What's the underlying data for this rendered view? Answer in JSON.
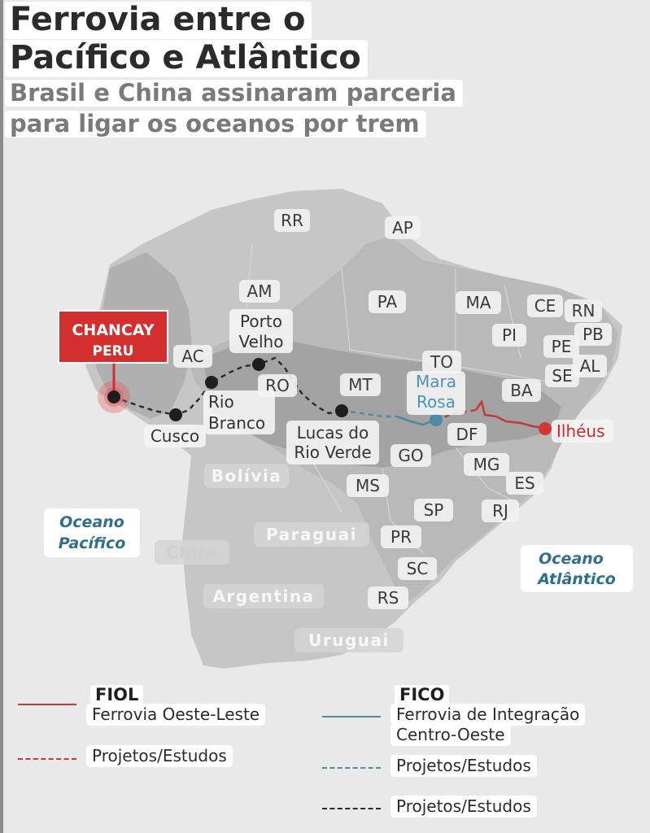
{
  "title": {
    "line1": "Ferrovia entre o",
    "line2": "Pacífico e Atlântico"
  },
  "subtitle": {
    "line1": "Brasil e China assinaram parceria",
    "line2": "para ligar os oceanos por trem"
  },
  "colors": {
    "fiol": "#c43a3a",
    "fico": "#4d8aa8",
    "studies_black": "#2a2a2a",
    "chancay_badge": "#d42f2f"
  },
  "map": {
    "states": [
      "RR",
      "AP",
      "AM",
      "PA",
      "MA",
      "CE",
      "RN",
      "PB",
      "PI",
      "PE",
      "AL",
      "SE",
      "AC",
      "RO",
      "TO",
      "BA",
      "MT",
      "DF",
      "GO",
      "MG",
      "ES",
      "MS",
      "SP",
      "RJ",
      "PR",
      "SC",
      "RS"
    ],
    "countries": [
      "Bolívia",
      "Paraguai",
      "Chile",
      "Argentina",
      "Uruguai"
    ],
    "oceans": {
      "pacific": [
        "Oceano",
        "Pacífico"
      ],
      "atlantic": [
        "Oceano",
        "Atlântico"
      ]
    },
    "cities": {
      "porto_velho": [
        "Porto",
        "Velho"
      ],
      "rio_branco": [
        "Rio",
        "Branco"
      ],
      "cusco": "Cusco",
      "lucas": [
        "Lucas do",
        "Rio Verde"
      ],
      "mara_rosa": [
        "Mara",
        "Rosa"
      ],
      "ilheus": "Ilhéus"
    },
    "badge": {
      "line1": "CHANCAY",
      "line2": "PERU"
    }
  },
  "legend": {
    "fiol_code": "FIOL",
    "fiol_name": "Ferrovia Oeste-Leste",
    "fiol_studies": "Projetos/Estudos",
    "fico_code": "FICO",
    "fico_name_1": "Ferrovia de Integração",
    "fico_name_2": "Centro-Oeste",
    "fico_studies": "Projetos/Estudos",
    "black_studies": "Projetos/Estudos"
  }
}
